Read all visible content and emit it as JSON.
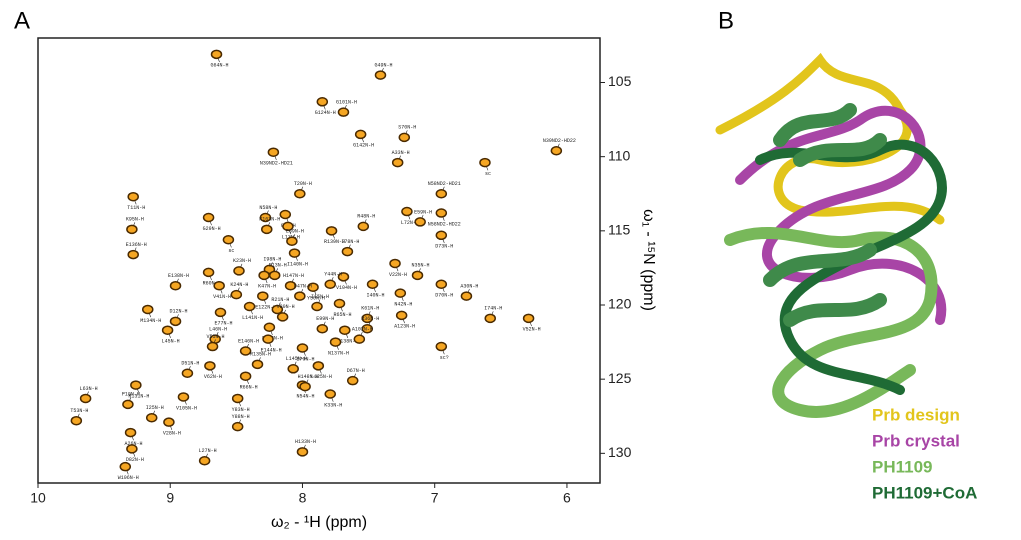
{
  "chart_data": {
    "type": "scatter",
    "panel_label": "A",
    "xlabel": "ω₂ - ¹H (ppm)",
    "ylabel": "ω₁ - ¹⁵N (ppm)",
    "xlim": [
      10,
      5.75
    ],
    "ylim": [
      102,
      132
    ],
    "xticks": [
      10,
      9,
      8,
      7,
      6
    ],
    "yticks": [
      105,
      110,
      115,
      120,
      125,
      130
    ],
    "color": "#f5a623",
    "labels": [
      "G64N-H",
      "G49N-H",
      "G124N-H",
      "G101N-H",
      "G142N-H",
      "S70N-H",
      "N39ND2-HD21",
      "A33N-H",
      "sc",
      "N39ND2-HD22",
      "T11N-H",
      "T20N-H",
      "G29N-H",
      "N58N-H",
      "G2N-H",
      "N58ND2-HD21",
      "L72N-H",
      "E59N-H",
      "N58ND2-HD22",
      "K95N-H",
      "L13N-H",
      "K163N-H",
      "R139N-H",
      "R48N-H",
      "sc",
      "E69N-H",
      "I140N-H",
      "I78N-H",
      "D73N-H",
      "E136N-H",
      "V22N-H",
      "I98N-H",
      "R60N-H",
      "K23N-H",
      "K47N-H",
      "E13N-H",
      "V104N-H",
      "N35N-H",
      "D70N-H",
      "E138N-H",
      "V41N-H",
      "H147N-H",
      "Y50N-H",
      "Y44N-H",
      "I40N-H",
      "A30N-H",
      "M134N-H",
      "K24N-H",
      "E122N-H",
      "D47N-H",
      "N42N-H",
      "I74N-H",
      "V52N-H",
      "I15N-H",
      "R65N-H",
      "D12N-H",
      "L141N-H",
      "R21N-H",
      "E77N-H",
      "V80N-H",
      "A123N-H",
      "K61N-H",
      "L45N-H",
      "L46N-H",
      "S143N-H",
      "E99N-H",
      "N138N-H",
      "R36N-H",
      "sc?",
      "A102N-H",
      "E144N-H",
      "V55N-H",
      "E70N-H",
      "E146N-H",
      "N137N-H",
      "R135N-H",
      "V62N-H",
      "L145N-H",
      "L125N-H",
      "D51N-H",
      "R66N-H",
      "D67N-H",
      "R131N-H",
      "L63N-H",
      "N54N-H",
      "H148N-H",
      "K33N-H",
      "P10N-H",
      "V105N-H",
      "I25N-H",
      "Y83N-H",
      "T53N-H",
      "V28N-H",
      "Y88N-H",
      "A26N-H",
      "L27N-H",
      "D82N-H",
      "H133N-H",
      "W106N-H"
    ],
    "x": [
      8.65,
      7.41,
      7.85,
      7.69,
      7.56,
      7.23,
      8.22,
      7.28,
      6.62,
      6.08,
      9.28,
      8.02,
      8.71,
      8.28,
      8.13,
      6.95,
      7.21,
      7.11,
      6.95,
      9.29,
      8.11,
      8.27,
      7.78,
      7.54,
      8.56,
      8.08,
      8.06,
      7.66,
      6.95,
      9.28,
      7.3,
      8.25,
      8.71,
      8.48,
      8.29,
      8.21,
      7.69,
      7.13,
      6.95,
      8.96,
      8.63,
      8.09,
      7.92,
      7.79,
      7.47,
      6.76,
      9.17,
      8.5,
      8.3,
      8.02,
      7.26,
      6.58,
      6.29,
      7.89,
      7.72,
      8.96,
      8.4,
      8.19,
      8.62,
      8.15,
      7.25,
      7.51,
      9.02,
      8.66,
      8.25,
      7.85,
      7.68,
      7.51,
      6.95,
      7.57,
      8.26,
      8.68,
      8.0,
      8.43,
      7.75,
      8.34,
      8.7,
      8.07,
      7.88,
      8.87,
      8.43,
      7.62,
      9.26,
      9.64,
      8.0,
      7.98,
      7.79,
      9.32,
      8.9,
      9.14,
      8.49,
      9.71,
      9.01,
      8.49,
      9.3,
      8.74,
      9.29,
      8.0,
      9.34
    ],
    "y": [
      103.1,
      104.5,
      106.3,
      107.0,
      108.5,
      108.7,
      109.7,
      110.4,
      110.4,
      109.6,
      112.7,
      112.5,
      114.1,
      114.1,
      113.9,
      112.5,
      113.7,
      114.4,
      113.8,
      114.9,
      114.7,
      114.9,
      115.0,
      114.7,
      115.6,
      115.7,
      116.5,
      116.4,
      115.3,
      116.6,
      117.2,
      117.6,
      117.8,
      117.7,
      118.0,
      118.0,
      118.1,
      118.0,
      118.6,
      118.7,
      118.7,
      118.7,
      118.8,
      118.6,
      118.6,
      119.4,
      120.3,
      119.3,
      119.4,
      119.4,
      119.2,
      120.9,
      120.9,
      120.1,
      119.9,
      121.1,
      120.1,
      120.3,
      120.5,
      120.8,
      120.7,
      120.9,
      121.7,
      122.3,
      121.5,
      121.6,
      121.7,
      121.6,
      122.8,
      122.3,
      122.3,
      122.8,
      122.9,
      123.1,
      122.5,
      124.0,
      124.1,
      124.3,
      124.1,
      124.6,
      124.8,
      125.1,
      125.4,
      126.3,
      125.4,
      125.5,
      126.0,
      126.7,
      126.2,
      127.6,
      126.3,
      127.8,
      127.9,
      128.2,
      128.6,
      130.5,
      129.7,
      129.9,
      130.9
    ]
  },
  "panel_b": {
    "label": "B",
    "legend": [
      {
        "name": "Prb design",
        "color": "#e2c51c"
      },
      {
        "name": "Prb crystal",
        "color": "#a845a6"
      },
      {
        "name": "PH1109",
        "color": "#78b85a"
      },
      {
        "name": "PH1109+CoA",
        "color": "#1f6b35"
      }
    ]
  }
}
